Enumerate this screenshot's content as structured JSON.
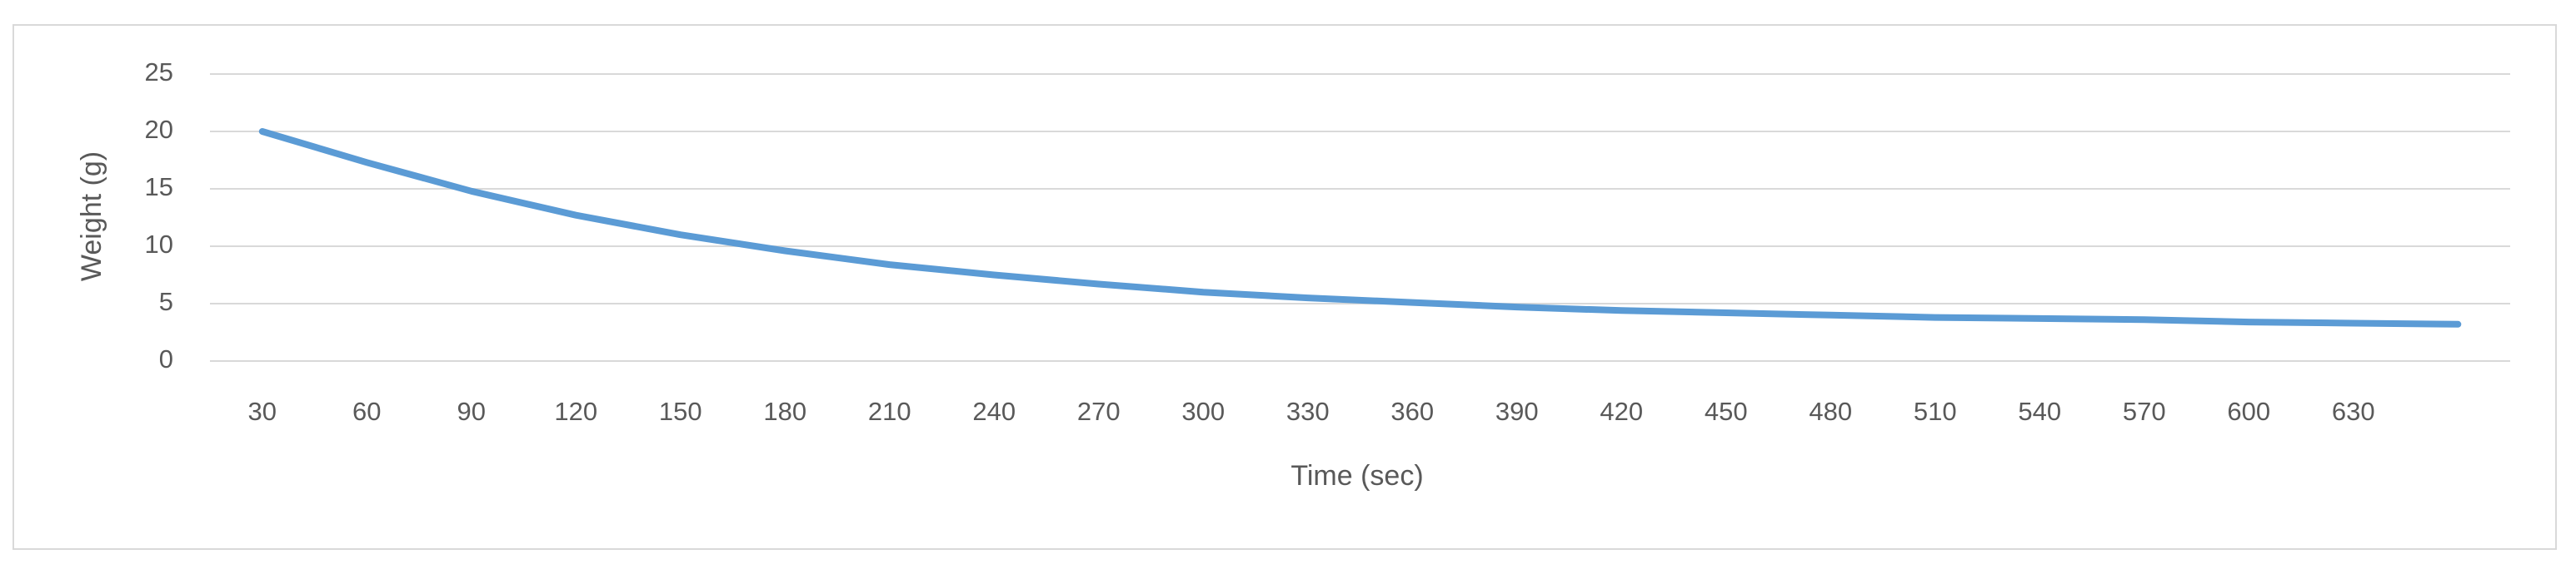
{
  "chart_data": {
    "type": "line",
    "x_label": "Time (sec)",
    "y_label": "Weight (g)",
    "categories": [
      30,
      60,
      90,
      120,
      150,
      180,
      210,
      240,
      270,
      300,
      330,
      360,
      390,
      420,
      450,
      480,
      510,
      540,
      570,
      600,
      630,
      null
    ],
    "values": [
      20,
      17.3,
      14.8,
      12.7,
      11.0,
      9.6,
      8.4,
      7.5,
      6.7,
      6.0,
      5.5,
      5.1,
      4.7,
      4.4,
      4.2,
      4.0,
      3.8,
      3.7,
      3.6,
      3.4,
      3.3,
      3.2
    ],
    "color": "#5b9bd5",
    "ylim": [
      0,
      25
    ],
    "yticks": [
      0,
      5,
      10,
      15,
      20,
      25
    ],
    "grid": true
  }
}
